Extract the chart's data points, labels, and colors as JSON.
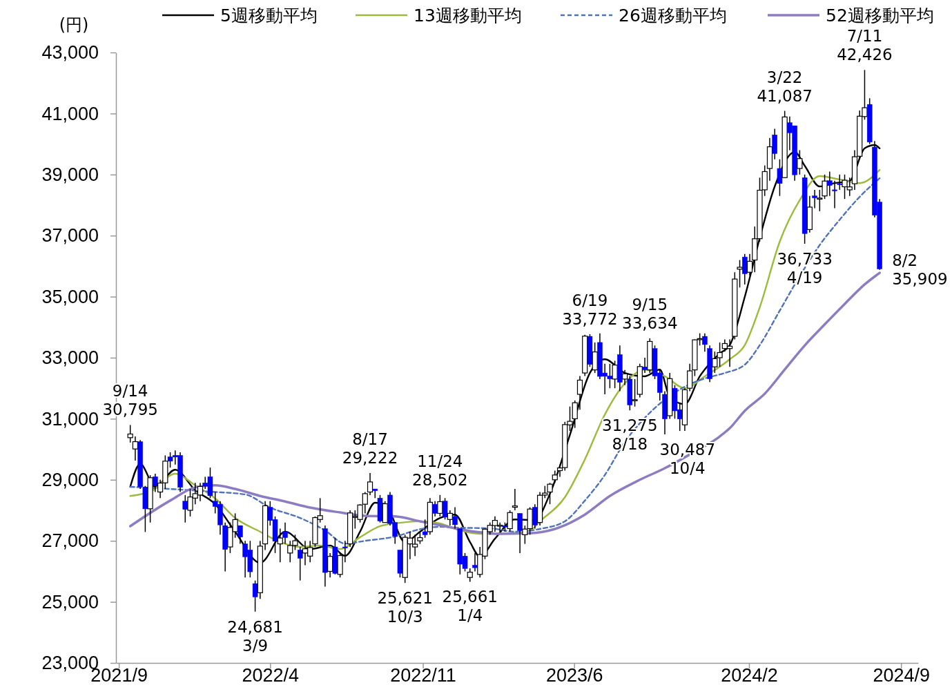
{
  "chart_data": {
    "type": "candlestick",
    "ylabel": "(円)",
    "legend": "top",
    "xlim": [
      "2021-08-28",
      "2024-09-25"
    ],
    "xticks": [
      {
        "value": "2021-09-01",
        "label": "2021/9"
      },
      {
        "value": "2022-04-01",
        "label": "2022/4"
      },
      {
        "value": "2022-11-01",
        "label": "2022/11"
      },
      {
        "value": "2023-06-01",
        "label": "2023/6"
      },
      {
        "value": "2024-02-01",
        "label": "2024/2"
      },
      {
        "value": "2024-09-01",
        "label": "2024/9"
      }
    ],
    "ylim": [
      23000,
      43000
    ],
    "yticks": [
      {
        "value": 23000,
        "label": "23,000"
      },
      {
        "value": 25000,
        "label": "25,000"
      },
      {
        "value": 27000,
        "label": "27,000"
      },
      {
        "value": 29000,
        "label": "29,000"
      },
      {
        "value": 31000,
        "label": "31,000"
      },
      {
        "value": 33000,
        "label": "33,000"
      },
      {
        "value": 35000,
        "label": "35,000"
      },
      {
        "value": 37000,
        "label": "37,000"
      },
      {
        "value": 39000,
        "label": "39,000"
      },
      {
        "value": 41000,
        "label": "41,000"
      },
      {
        "value": 43000,
        "label": "43,000"
      }
    ],
    "annotations": [
      {
        "text": "9/14\n30,795",
        "x": "2021-09-17",
        "y": 30795
      },
      {
        "text": "24,681\n3/9",
        "x": "2022-03-11",
        "y": 24681
      },
      {
        "text": "8/17\n29,222",
        "x": "2022-08-19",
        "y": 29222
      },
      {
        "text": "25,621\n10/3",
        "x": "2022-10-07",
        "y": 25621
      },
      {
        "text": "11/24\n28,502",
        "x": "2022-11-25",
        "y": 28502
      },
      {
        "text": "25,661\n1/4",
        "x": "2023-01-06",
        "y": 25661
      },
      {
        "text": "6/19\n33,772",
        "x": "2023-06-23",
        "y": 33772
      },
      {
        "text": "31,275\n8/18",
        "x": "2023-08-18",
        "y": 31275
      },
      {
        "text": "9/15\n33,634",
        "x": "2023-09-15",
        "y": 33634
      },
      {
        "text": "30,487\n10/4",
        "x": "2023-10-06",
        "y": 30487
      },
      {
        "text": "3/22\n41,087",
        "x": "2024-03-22",
        "y": 41087
      },
      {
        "text": "36,733\n4/19",
        "x": "2024-04-19",
        "y": 36733
      },
      {
        "text": "7/11\n42,426",
        "x": "2024-07-12",
        "y": 42426
      },
      {
        "text": "8/2\n35,909",
        "x": "2024-08-02",
        "y": 35909
      }
    ],
    "series": [
      {
        "x": [
          "2021-09-17",
          "2021-09-24",
          "2021-10-01",
          "2021-10-08",
          "2021-10-15",
          "2021-10-22",
          "2021-10-29",
          "2021-11-05",
          "2021-11-12",
          "2021-11-19",
          "2021-11-26",
          "2021-12-03",
          "2021-12-10",
          "2021-12-17",
          "2021-12-24",
          "2021-12-31",
          "2022-01-07",
          "2022-01-14",
          "2022-01-21",
          "2022-01-28",
          "2022-02-04",
          "2022-02-11",
          "2022-02-18",
          "2022-02-25",
          "2022-03-04",
          "2022-03-11",
          "2022-03-18",
          "2022-03-25",
          "2022-04-01",
          "2022-04-08",
          "2022-04-15",
          "2022-04-22",
          "2022-04-29",
          "2022-05-06",
          "2022-05-13",
          "2022-05-20",
          "2022-05-27",
          "2022-06-03",
          "2022-06-10",
          "2022-06-17",
          "2022-06-24",
          "2022-07-01",
          "2022-07-08",
          "2022-07-15",
          "2022-07-22",
          "2022-07-29",
          "2022-08-05",
          "2022-08-12",
          "2022-08-19",
          "2022-08-26",
          "2022-09-02",
          "2022-09-09",
          "2022-09-16",
          "2022-09-23",
          "2022-09-30",
          "2022-10-07",
          "2022-10-14",
          "2022-10-21",
          "2022-10-28",
          "2022-11-04",
          "2022-11-11",
          "2022-11-18",
          "2022-11-25",
          "2022-12-02",
          "2022-12-09",
          "2022-12-16",
          "2022-12-23",
          "2022-12-30",
          "2023-01-06",
          "2023-01-13",
          "2023-01-20",
          "2023-01-27",
          "2023-02-03",
          "2023-02-10",
          "2023-02-17",
          "2023-02-24",
          "2023-03-03",
          "2023-03-10",
          "2023-03-17",
          "2023-03-24",
          "2023-03-31",
          "2023-04-07",
          "2023-04-14",
          "2023-04-21",
          "2023-04-28",
          "2023-05-05",
          "2023-05-12",
          "2023-05-19",
          "2023-05-26",
          "2023-06-02",
          "2023-06-09",
          "2023-06-16",
          "2023-06-23",
          "2023-06-30",
          "2023-07-07",
          "2023-07-14",
          "2023-07-21",
          "2023-07-28",
          "2023-08-04",
          "2023-08-11",
          "2023-08-18",
          "2023-08-25",
          "2023-09-01",
          "2023-09-08",
          "2023-09-15",
          "2023-09-22",
          "2023-09-29",
          "2023-10-06",
          "2023-10-13",
          "2023-10-20",
          "2023-10-27",
          "2023-11-03",
          "2023-11-10",
          "2023-11-17",
          "2023-11-24",
          "2023-12-01",
          "2023-12-08",
          "2023-12-15",
          "2023-12-22",
          "2023-12-29",
          "2024-01-05",
          "2024-01-12",
          "2024-01-19",
          "2024-01-26",
          "2024-02-02",
          "2024-02-09",
          "2024-02-16",
          "2024-02-23",
          "2024-03-01",
          "2024-03-08",
          "2024-03-15",
          "2024-03-22",
          "2024-03-29",
          "2024-04-05",
          "2024-04-12",
          "2024-04-19",
          "2024-04-26",
          "2024-05-03",
          "2024-05-10",
          "2024-05-17",
          "2024-05-24",
          "2024-05-31",
          "2024-06-07",
          "2024-06-14",
          "2024-06-21",
          "2024-06-28",
          "2024-07-05",
          "2024-07-12",
          "2024-07-19",
          "2024-07-26",
          "2024-08-02"
        ],
        "ohlc": [
          [
            30380,
            30795,
            30220,
            30500
          ],
          [
            30010,
            30420,
            29630,
            30249
          ],
          [
            30250,
            30300,
            28700,
            28771
          ],
          [
            28760,
            28800,
            27290,
            28048
          ],
          [
            28050,
            29150,
            27600,
            29068
          ],
          [
            29100,
            29200,
            28600,
            28804
          ],
          [
            28600,
            29000,
            28400,
            28892
          ],
          [
            28900,
            29800,
            28700,
            29611
          ],
          [
            29750,
            29900,
            29400,
            29609
          ],
          [
            29800,
            29960,
            29500,
            29745
          ],
          [
            29800,
            29900,
            28600,
            28751
          ],
          [
            28300,
            28500,
            27600,
            28029
          ],
          [
            28000,
            28700,
            27800,
            28437
          ],
          [
            28400,
            28900,
            28200,
            28545
          ],
          [
            28500,
            28900,
            28300,
            28782
          ],
          [
            28900,
            29100,
            28700,
            28791
          ],
          [
            29100,
            29400,
            28400,
            28478
          ],
          [
            28300,
            28600,
            27900,
            28124
          ],
          [
            28200,
            28300,
            27200,
            27522
          ],
          [
            27500,
            27600,
            26000,
            26717
          ],
          [
            26800,
            27600,
            26600,
            27439
          ],
          [
            27300,
            27900,
            27100,
            27696
          ],
          [
            27500,
            27500,
            26900,
            27122
          ],
          [
            26900,
            27000,
            25800,
            26476
          ],
          [
            26700,
            27000,
            25800,
            25985
          ],
          [
            25600,
            25700,
            24681,
            25162
          ],
          [
            25300,
            27000,
            25100,
            26827
          ],
          [
            26900,
            28300,
            26700,
            28149
          ],
          [
            28100,
            28300,
            27500,
            27665
          ],
          [
            27700,
            27800,
            26600,
            26985
          ],
          [
            26900,
            27400,
            26300,
            27093
          ],
          [
            27300,
            27600,
            26900,
            27105
          ],
          [
            26600,
            27000,
            26300,
            26847
          ],
          [
            26850,
            27200,
            26700,
            27003
          ],
          [
            26700,
            26800,
            25700,
            26427
          ],
          [
            26600,
            27000,
            26200,
            26739
          ],
          [
            26500,
            27000,
            26300,
            26781
          ],
          [
            26900,
            27800,
            26800,
            27761
          ],
          [
            27700,
            28400,
            27600,
            27824
          ],
          [
            27400,
            27500,
            25500,
            25963
          ],
          [
            26000,
            26600,
            25800,
            26491
          ],
          [
            26800,
            27100,
            25900,
            25935
          ],
          [
            25900,
            26600,
            25800,
            26517
          ],
          [
            26800,
            27000,
            26300,
            26788
          ],
          [
            26900,
            28000,
            26800,
            27914
          ],
          [
            27800,
            28000,
            27400,
            27801
          ],
          [
            27700,
            28200,
            27600,
            28175
          ],
          [
            28200,
            28600,
            27900,
            28546
          ],
          [
            28600,
            29222,
            28500,
            28930
          ],
          [
            28700,
            28700,
            28400,
            28641
          ],
          [
            28400,
            28500,
            27600,
            27650
          ],
          [
            27600,
            28300,
            27600,
            28214
          ],
          [
            28500,
            28600,
            27500,
            27567
          ],
          [
            27600,
            27600,
            26900,
            27153
          ],
          [
            26700,
            26700,
            25800,
            25937
          ],
          [
            25800,
            27200,
            25621,
            27116
          ],
          [
            26900,
            27300,
            26400,
            27090
          ],
          [
            26800,
            27200,
            26500,
            26890
          ],
          [
            27000,
            27300,
            26900,
            27105
          ],
          [
            27300,
            27700,
            27100,
            27199
          ],
          [
            27300,
            28400,
            27200,
            28263
          ],
          [
            28200,
            28300,
            27800,
            27899
          ],
          [
            27900,
            28502,
            27800,
            28283
          ],
          [
            28300,
            28400,
            27700,
            27777
          ],
          [
            27700,
            28000,
            27500,
            27901
          ],
          [
            27800,
            28100,
            27400,
            27527
          ],
          [
            27400,
            27400,
            25900,
            26235
          ],
          [
            26500,
            26600,
            26000,
            26094
          ],
          [
            25800,
            26100,
            25661,
            25973
          ],
          [
            26200,
            26600,
            26000,
            26119
          ],
          [
            25900,
            26800,
            25800,
            26553
          ],
          [
            26500,
            27400,
            26400,
            27382
          ],
          [
            27300,
            27600,
            27200,
            27509
          ],
          [
            27500,
            27800,
            27300,
            27670
          ],
          [
            27500,
            27600,
            27300,
            27513
          ],
          [
            27500,
            27600,
            27300,
            27453
          ],
          [
            27400,
            28000,
            27300,
            27927
          ],
          [
            28100,
            28700,
            28000,
            28143
          ],
          [
            27900,
            27900,
            26600,
            27333
          ],
          [
            27200,
            27500,
            26900,
            27385
          ],
          [
            27400,
            28100,
            27200,
            28041
          ],
          [
            28100,
            28200,
            27400,
            27518
          ],
          [
            27600,
            28600,
            27500,
            28493
          ],
          [
            28500,
            28800,
            28400,
            28564
          ],
          [
            28600,
            28900,
            28200,
            28856
          ],
          [
            29000,
            29300,
            28900,
            29157
          ],
          [
            29300,
            29500,
            29100,
            29388
          ],
          [
            29400,
            30900,
            29300,
            30808
          ],
          [
            30800,
            31400,
            30600,
            30916
          ],
          [
            31000,
            31600,
            30700,
            31524
          ],
          [
            31800,
            32400,
            31300,
            32265
          ],
          [
            32500,
            33750,
            32400,
            33706
          ],
          [
            33700,
            33772,
            32700,
            32781
          ],
          [
            32600,
            33500,
            32500,
            33189
          ],
          [
            33500,
            33800,
            32300,
            32388
          ],
          [
            32500,
            32800,
            31800,
            32391
          ],
          [
            32400,
            32800,
            32000,
            32304
          ],
          [
            32300,
            32900,
            32000,
            32759
          ],
          [
            33100,
            33400,
            31900,
            32192
          ],
          [
            32300,
            32600,
            32100,
            32473
          ],
          [
            32300,
            32400,
            31275,
            31450
          ],
          [
            31600,
            32300,
            31400,
            31624
          ],
          [
            31800,
            32800,
            31700,
            32710
          ],
          [
            32700,
            33000,
            32500,
            32606
          ],
          [
            32600,
            33634,
            32500,
            33533
          ],
          [
            33300,
            33400,
            32300,
            32402
          ],
          [
            32500,
            32600,
            31600,
            31857
          ],
          [
            31800,
            31900,
            30487,
            30994
          ],
          [
            31100,
            32500,
            31000,
            32315
          ],
          [
            32000,
            32100,
            31000,
            31259
          ],
          [
            31300,
            31500,
            30600,
            30991
          ],
          [
            30800,
            32000,
            30600,
            31949
          ],
          [
            32000,
            32800,
            31900,
            32568
          ],
          [
            32600,
            33600,
            32400,
            33585
          ],
          [
            33600,
            33800,
            33400,
            33625
          ],
          [
            33700,
            33800,
            33200,
            33431
          ],
          [
            33300,
            33400,
            32200,
            32307
          ],
          [
            32700,
            33200,
            32500,
            32970
          ],
          [
            33000,
            33500,
            32700,
            33169
          ],
          [
            33300,
            33600,
            33200,
            33464
          ],
          [
            33300,
            33600,
            32700,
            33377
          ],
          [
            33700,
            35800,
            33600,
            35577
          ],
          [
            35900,
            36200,
            35300,
            35963
          ],
          [
            36300,
            36400,
            35400,
            35751
          ],
          [
            35800,
            36400,
            35700,
            36158
          ],
          [
            36200,
            37300,
            35800,
            36897
          ],
          [
            36900,
            38900,
            36800,
            38487
          ],
          [
            38500,
            39300,
            38300,
            39098
          ],
          [
            39200,
            40200,
            38800,
            39910
          ],
          [
            40300,
            40500,
            39500,
            39688
          ],
          [
            39200,
            39500,
            38300,
            38707
          ],
          [
            38900,
            41087,
            38900,
            40888
          ],
          [
            40700,
            40900,
            39800,
            40369
          ],
          [
            40600,
            40600,
            38800,
            38992
          ],
          [
            39200,
            39800,
            39000,
            39523
          ],
          [
            38900,
            39000,
            36733,
            37068
          ],
          [
            37200,
            38300,
            37100,
            37934
          ],
          [
            38300,
            38500,
            37900,
            38236
          ],
          [
            38200,
            38500,
            37800,
            38229
          ],
          [
            38300,
            39000,
            38200,
            38787
          ],
          [
            38800,
            39100,
            38300,
            38646
          ],
          [
            38500,
            38800,
            37900,
            38487
          ],
          [
            38700,
            39000,
            38500,
            38683
          ],
          [
            38600,
            39000,
            38200,
            38814
          ],
          [
            38500,
            38900,
            38300,
            38596
          ],
          [
            38700,
            39800,
            38500,
            39583
          ],
          [
            39600,
            41100,
            39500,
            40912
          ],
          [
            40900,
            42426,
            40800,
            41190
          ],
          [
            41300,
            41500,
            40000,
            40063
          ],
          [
            39900,
            40100,
            37600,
            37667
          ],
          [
            38100,
            38200,
            35880,
            35909
          ]
        ]
      },
      {
        "type": "line",
        "name": "5週移動平均",
        "color": "#000000",
        "x": [
          "2021-09-17",
          "2021-10-01",
          "2021-10-22",
          "2021-11-19",
          "2021-12-17",
          "2022-01-14",
          "2022-02-11",
          "2022-03-18",
          "2022-04-22",
          "2022-05-27",
          "2022-06-24",
          "2022-07-15",
          "2022-08-05",
          "2022-08-26",
          "2022-09-09",
          "2022-10-07",
          "2022-10-28",
          "2022-11-25",
          "2022-12-16",
          "2023-01-06",
          "2023-01-20",
          "2023-02-10",
          "2023-03-10",
          "2023-04-07",
          "2023-04-28",
          "2023-05-26",
          "2023-06-23",
          "2023-07-14",
          "2023-08-11",
          "2023-09-08",
          "2023-09-29",
          "2023-10-13",
          "2023-11-03",
          "2023-11-24",
          "2023-12-22",
          "2024-01-05",
          "2024-01-26",
          "2024-02-16",
          "2024-03-08",
          "2024-04-05",
          "2024-04-19",
          "2024-05-10",
          "2024-05-31",
          "2024-06-21",
          "2024-07-12",
          "2024-07-26",
          "2024-08-02"
        ],
        "values": [
          28770,
          29520,
          28770,
          29330,
          28660,
          28200,
          27300,
          26280,
          27300,
          26730,
          26850,
          26510,
          27300,
          28250,
          28200,
          26960,
          27300,
          27750,
          27860,
          26960,
          26480,
          27070,
          27700,
          27680,
          28540,
          30470,
          32500,
          32950,
          32500,
          32390,
          32610,
          31710,
          31480,
          32390,
          33140,
          33410,
          34990,
          36920,
          38610,
          39740,
          39290,
          38610,
          38720,
          38790,
          39860,
          39970,
          39860
        ]
      },
      {
        "type": "line",
        "name": "13週移動平均",
        "color": "#9bbb3b",
        "x": [
          "2021-09-17",
          "2021-10-19",
          "2021-11-19",
          "2021-12-17",
          "2022-01-14",
          "2022-02-11",
          "2022-03-18",
          "2022-04-15",
          "2022-05-13",
          "2022-06-10",
          "2022-07-08",
          "2022-08-05",
          "2022-09-02",
          "2022-09-30",
          "2022-10-28",
          "2022-11-25",
          "2022-12-23",
          "2023-01-20",
          "2023-02-17",
          "2023-03-31",
          "2023-04-14",
          "2023-05-19",
          "2023-06-16",
          "2023-07-14",
          "2023-08-11",
          "2023-09-08",
          "2023-10-06",
          "2023-11-03",
          "2023-12-01",
          "2024-01-05",
          "2024-01-26",
          "2024-02-16",
          "2024-03-15",
          "2024-04-12",
          "2024-05-10",
          "2024-06-07",
          "2024-07-05",
          "2024-08-02"
        ],
        "values": [
          28470,
          28660,
          29200,
          28820,
          28390,
          27750,
          27300,
          26960,
          26800,
          26850,
          26730,
          27120,
          27480,
          27590,
          27640,
          27570,
          27340,
          27230,
          27230,
          27340,
          27640,
          28430,
          29670,
          31140,
          32160,
          32610,
          32390,
          32000,
          32390,
          32950,
          33410,
          34650,
          36800,
          38160,
          38950,
          38840,
          38720,
          39150
        ]
      },
      {
        "type": "line",
        "name": "26週移動平均",
        "color": "#4f72be",
        "line_style": "dashed",
        "x": [
          "2021-09-17",
          "2021-11-12",
          "2022-01-07",
          "2022-02-25",
          "2022-04-01",
          "2022-05-13",
          "2022-06-17",
          "2022-07-15",
          "2022-08-12",
          "2022-09-23",
          "2022-10-28",
          "2022-11-25",
          "2022-12-23",
          "2023-02-03",
          "2023-03-10",
          "2023-04-14",
          "2023-05-19",
          "2023-06-16",
          "2023-07-14",
          "2023-08-11",
          "2023-09-08",
          "2023-11-03",
          "2023-12-01",
          "2023-12-29",
          "2024-01-26",
          "2024-02-16",
          "2024-03-15",
          "2024-04-12",
          "2024-05-10",
          "2024-06-07",
          "2024-07-05",
          "2024-08-02"
        ],
        "values": [
          28770,
          28700,
          28610,
          28520,
          28090,
          27750,
          27340,
          26910,
          27000,
          27140,
          27380,
          27460,
          27430,
          27410,
          27300,
          27390,
          27640,
          28320,
          29160,
          30240,
          31030,
          32050,
          32320,
          32500,
          32770,
          33410,
          34540,
          35670,
          36690,
          37520,
          38270,
          38880
        ]
      },
      {
        "type": "line",
        "name": "52週移動平均",
        "color": "#8e7cc3",
        "x": [
          "2021-09-17",
          "2021-11-12",
          "2021-12-17",
          "2022-01-14",
          "2022-02-11",
          "2022-03-18",
          "2022-04-22",
          "2022-05-27",
          "2022-07-08",
          "2022-08-12",
          "2022-09-23",
          "2022-10-28",
          "2022-12-02",
          "2023-01-13",
          "2023-02-17",
          "2023-03-31",
          "2023-05-05",
          "2023-06-16",
          "2023-07-21",
          "2023-09-01",
          "2023-10-06",
          "2023-11-10",
          "2023-12-22",
          "2024-01-05",
          "2024-01-26",
          "2024-02-23",
          "2024-03-22",
          "2024-04-19",
          "2024-05-17",
          "2024-06-14",
          "2024-07-12",
          "2024-08-02"
        ],
        "values": [
          27480,
          28320,
          28750,
          28820,
          28700,
          28470,
          28290,
          28090,
          27930,
          27820,
          27800,
          27640,
          27480,
          27300,
          27230,
          27250,
          27390,
          27860,
          28470,
          29000,
          29380,
          29830,
          30420,
          30690,
          31260,
          31820,
          32610,
          33400,
          34090,
          34760,
          35400,
          35780
        ]
      }
    ]
  }
}
